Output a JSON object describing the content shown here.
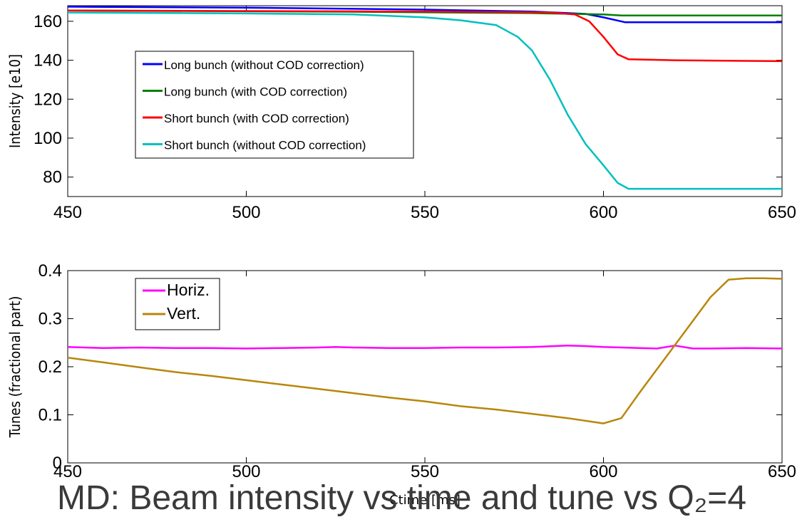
{
  "slide_title": "MD: Beam intensity vs time and tune vs Q₂=4",
  "colors": {
    "long_without_cod": "#0000ff",
    "long_with_cod": "#008000",
    "short_with_cod": "#ff0000",
    "short_without_cod": "#00c0c0",
    "horiz": "#ff00ff",
    "vert": "#b8860b"
  },
  "chart_data": [
    {
      "type": "line",
      "title": "",
      "xlabel": "",
      "ylabel": "Intensity [e10]",
      "xlim": [
        450,
        650
      ],
      "ylim": [
        70,
        168
      ],
      "xticks": [
        "450",
        "500",
        "550",
        "600",
        "650"
      ],
      "yticks": [
        "80",
        "100",
        "120",
        "140",
        "160"
      ],
      "legend_position": "center-left",
      "series": [
        {
          "name": "Long bunch (without COD correction)",
          "color_key": "long_without_cod",
          "points": [
            [
              450,
              167.5
            ],
            [
              500,
              167.0
            ],
            [
              550,
              166.0
            ],
            [
              580,
              165.0
            ],
            [
              595,
              163.8
            ],
            [
              600,
              162.0
            ],
            [
              606,
              159.5
            ],
            [
              650,
              159.5
            ]
          ]
        },
        {
          "name": "Long bunch (with COD correction)",
          "color_key": "long_with_cod",
          "points": [
            [
              450,
              165.5
            ],
            [
              520,
              165.0
            ],
            [
              580,
              164.2
            ],
            [
              600,
              163.5
            ],
            [
              605,
              163.0
            ],
            [
              650,
              163.0
            ]
          ]
        },
        {
          "name": "Short bunch (with COD correction)",
          "color_key": "short_with_cod",
          "points": [
            [
              450,
              165.5
            ],
            [
              550,
              165.0
            ],
            [
              585,
              164.5
            ],
            [
              592,
              163.5
            ],
            [
              596,
              160.0
            ],
            [
              600,
              152.0
            ],
            [
              604,
              143.0
            ],
            [
              607,
              140.5
            ],
            [
              620,
              140.0
            ],
            [
              650,
              139.5
            ]
          ]
        },
        {
          "name": "Short bunch (without COD correction)",
          "color_key": "short_without_cod",
          "points": [
            [
              450,
              164.5
            ],
            [
              500,
              164.0
            ],
            [
              530,
              163.5
            ],
            [
              550,
              162.0
            ],
            [
              560,
              160.5
            ],
            [
              570,
              158.0
            ],
            [
              576,
              152.0
            ],
            [
              580,
              145.0
            ],
            [
              585,
              130.0
            ],
            [
              590,
              112.0
            ],
            [
              595,
              97.0
            ],
            [
              600,
              86.0
            ],
            [
              604,
              77.0
            ],
            [
              607,
              74.0
            ],
            [
              625,
              74.0
            ],
            [
              650,
              74.0
            ]
          ]
        }
      ]
    },
    {
      "type": "line",
      "title": "",
      "xlabel": "Ctime [ms]",
      "ylabel": "Tunes (fractional part)",
      "xlim": [
        450,
        650
      ],
      "ylim": [
        0,
        0.4
      ],
      "xticks": [
        "450",
        "500",
        "550",
        "600",
        "650"
      ],
      "yticks": [
        "0",
        "0.1",
        "0.2",
        "0.3",
        "0.4"
      ],
      "legend_position": "top-left",
      "series": [
        {
          "name": "Horiz.",
          "color_key": "horiz",
          "points": [
            [
              450,
              0.241
            ],
            [
              460,
              0.239
            ],
            [
              470,
              0.24
            ],
            [
              480,
              0.239
            ],
            [
              490,
              0.239
            ],
            [
              500,
              0.238
            ],
            [
              510,
              0.239
            ],
            [
              520,
              0.24
            ],
            [
              525,
              0.241
            ],
            [
              530,
              0.24
            ],
            [
              540,
              0.239
            ],
            [
              550,
              0.239
            ],
            [
              560,
              0.24
            ],
            [
              570,
              0.24
            ],
            [
              580,
              0.241
            ],
            [
              590,
              0.244
            ],
            [
              595,
              0.243
            ],
            [
              600,
              0.241
            ],
            [
              610,
              0.239
            ],
            [
              615,
              0.238
            ],
            [
              620,
              0.244
            ],
            [
              625,
              0.238
            ],
            [
              630,
              0.238
            ],
            [
              640,
              0.239
            ],
            [
              650,
              0.238
            ]
          ]
        },
        {
          "name": "Vert.",
          "color_key": "vert",
          "points": [
            [
              450,
              0.219
            ],
            [
              460,
              0.209
            ],
            [
              470,
              0.199
            ],
            [
              480,
              0.189
            ],
            [
              490,
              0.181
            ],
            [
              500,
              0.172
            ],
            [
              510,
              0.163
            ],
            [
              520,
              0.154
            ],
            [
              530,
              0.145
            ],
            [
              540,
              0.136
            ],
            [
              550,
              0.128
            ],
            [
              560,
              0.118
            ],
            [
              570,
              0.111
            ],
            [
              580,
              0.102
            ],
            [
              590,
              0.093
            ],
            [
              600,
              0.082
            ],
            [
              605,
              0.093
            ],
            [
              610,
              0.145
            ],
            [
              620,
              0.245
            ],
            [
              630,
              0.345
            ],
            [
              635,
              0.381
            ],
            [
              640,
              0.384
            ],
            [
              645,
              0.384
            ],
            [
              650,
              0.383
            ]
          ]
        }
      ]
    }
  ]
}
